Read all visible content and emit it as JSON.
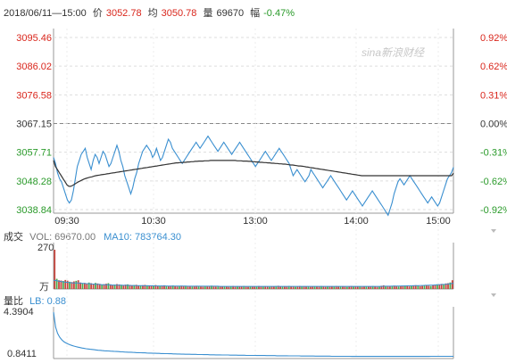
{
  "header": {
    "datetime": "2018/06/11—15:00",
    "price_label": "价",
    "price": "3052.78",
    "avg_label": "均",
    "avg": "3050.78",
    "vol_label": "量",
    "vol": "69670",
    "chg_label": "幅",
    "chg": "-0.47%"
  },
  "watermark": "sina新浪财经",
  "volume_header": {
    "title": "成交",
    "vol_text": "VOL: 69670.00",
    "ma_text": "MA10: 783764.30",
    "y_top": "270",
    "y_bottom": "万"
  },
  "ratio_header": {
    "title": "量比",
    "lb_text": "LB: 0.88",
    "y_top": "4.3904",
    "y_bottom": "0.8411"
  },
  "colors": {
    "price_line": "#3a8fd0",
    "avg_line": "#333333",
    "up": "#d9261c",
    "down": "#2a9a2a",
    "neutral": "#333333",
    "ratio_line": "#3a8fd0",
    "vol_up": "#c7473f",
    "vol_down": "#4caa4c",
    "ma_line": "#3a8fd0"
  },
  "chart_data": {
    "type": "line",
    "title": "",
    "x_ticks": [
      "09:30",
      "10:30",
      "13:00",
      "14:00",
      "15:00"
    ],
    "y_left_ticks": [
      "3095.46",
      "3086.02",
      "3076.58",
      "3067.15",
      "3057.71",
      "3048.28",
      "3038.84"
    ],
    "y_right_ticks": [
      "0.92%",
      "0.62%",
      "0.31%",
      "0.00%",
      "-0.31%",
      "-0.62%",
      "-0.92%"
    ],
    "y_ref": 3067.15,
    "ylim": [
      3038.84,
      3095.46
    ],
    "series": [
      {
        "name": "价",
        "values": [
          3056,
          3054,
          3051,
          3049,
          3048,
          3046,
          3044,
          3042,
          3041,
          3042,
          3045,
          3049,
          3053,
          3055,
          3057,
          3058,
          3059,
          3056,
          3054,
          3052,
          3055,
          3057,
          3056,
          3054,
          3056,
          3058,
          3057,
          3055,
          3053,
          3054,
          3056,
          3058,
          3060,
          3058,
          3055,
          3053,
          3050,
          3048,
          3046,
          3044,
          3046,
          3049,
          3051,
          3054,
          3056,
          3058,
          3059,
          3060,
          3059,
          3058,
          3056,
          3057,
          3059,
          3057,
          3055,
          3056,
          3058,
          3060,
          3062,
          3061,
          3059,
          3058,
          3057,
          3056,
          3055,
          3054,
          3055,
          3056,
          3057,
          3058,
          3059,
          3060,
          3061,
          3060,
          3059,
          3060,
          3061,
          3062,
          3063,
          3062,
          3061,
          3060,
          3059,
          3058,
          3059,
          3060,
          3061,
          3060,
          3059,
          3058,
          3057,
          3058,
          3059,
          3060,
          3061,
          3060,
          3059,
          3058,
          3057,
          3056,
          3055,
          3054,
          3053,
          3054,
          3055,
          3056,
          3057,
          3058,
          3057,
          3056,
          3055,
          3056,
          3057,
          3058,
          3059,
          3058,
          3057,
          3056,
          3055,
          3054,
          3052,
          3050,
          3051,
          3052,
          3051,
          3050,
          3049,
          3048,
          3049,
          3050,
          3052,
          3051,
          3050,
          3049,
          3048,
          3047,
          3046,
          3047,
          3048,
          3049,
          3050,
          3049,
          3048,
          3047,
          3046,
          3045,
          3044,
          3043,
          3042,
          3043,
          3044,
          3045,
          3044,
          3043,
          3042,
          3041,
          3040,
          3041,
          3042,
          3043,
          3044,
          3045,
          3044,
          3043,
          3042,
          3041,
          3040,
          3039,
          3038,
          3037,
          3039,
          3041,
          3044,
          3046,
          3048,
          3049,
          3048,
          3047,
          3048,
          3049,
          3050,
          3049,
          3048,
          3047,
          3046,
          3045,
          3044,
          3043,
          3042,
          3041,
          3042,
          3043,
          3042,
          3041,
          3040,
          3041,
          3043,
          3045,
          3047,
          3049,
          3050,
          3051,
          3052.78
        ],
        "color_key": "price_line"
      },
      {
        "name": "均",
        "values": [
          3055,
          3053,
          3052,
          3051,
          3050,
          3049,
          3048,
          3047,
          3046.5,
          3046.5,
          3046.8,
          3047.2,
          3047.6,
          3048,
          3048.3,
          3048.6,
          3048.9,
          3049.1,
          3049.3,
          3049.5,
          3049.6,
          3049.8,
          3050,
          3050.1,
          3050.2,
          3050.3,
          3050.4,
          3050.5,
          3050.6,
          3050.7,
          3050.8,
          3050.9,
          3051,
          3051.1,
          3051.2,
          3051.3,
          3051.4,
          3051.5,
          3051.6,
          3051.7,
          3051.8,
          3051.9,
          3052,
          3052.1,
          3052.2,
          3052.3,
          3052.4,
          3052.5,
          3052.6,
          3052.7,
          3052.8,
          3052.9,
          3053,
          3053.1,
          3053.2,
          3053.3,
          3053.4,
          3053.5,
          3053.6,
          3053.7,
          3053.8,
          3053.9,
          3054,
          3054.1,
          3054.2,
          3054.2,
          3054.3,
          3054.3,
          3054.4,
          3054.4,
          3054.5,
          3054.5,
          3054.6,
          3054.6,
          3054.7,
          3054.7,
          3054.8,
          3054.8,
          3054.8,
          3054.9,
          3054.9,
          3054.9,
          3055,
          3055,
          3055,
          3055,
          3055,
          3055,
          3055,
          3055,
          3055,
          3055,
          3055,
          3055,
          3055,
          3055,
          3054.9,
          3054.9,
          3054.9,
          3054.8,
          3054.8,
          3054.8,
          3054.7,
          3054.7,
          3054.6,
          3054.6,
          3054.5,
          3054.5,
          3054.4,
          3054.4,
          3054.3,
          3054.3,
          3054.2,
          3054.2,
          3054.1,
          3054.1,
          3054,
          3054,
          3053.9,
          3053.9,
          3053.8,
          3053.8,
          3053.7,
          3053.6,
          3053.5,
          3053.5,
          3053.4,
          3053.3,
          3053.2,
          3053.2,
          3053.1,
          3053,
          3052.9,
          3052.8,
          3052.7,
          3052.6,
          3052.5,
          3052.4,
          3052.3,
          3052.2,
          3052.1,
          3052,
          3051.9,
          3051.8,
          3051.7,
          3051.6,
          3051.5,
          3051.4,
          3051.3,
          3051.2,
          3051.1,
          3051,
          3050.9,
          3050.8,
          3050.7,
          3050.6,
          3050.5,
          3050.4,
          3050.3,
          3050.2,
          3050.1,
          3050,
          3050,
          3050,
          3050,
          3050,
          3050,
          3050,
          3050,
          3050,
          3050,
          3050,
          3050,
          3050,
          3050,
          3050,
          3050,
          3050,
          3050,
          3050,
          3050,
          3050,
          3050,
          3050,
          3050,
          3050,
          3050,
          3050,
          3050,
          3050,
          3050,
          3050,
          3050,
          3050,
          3050,
          3050,
          3050,
          3050,
          3050,
          3050,
          3050,
          3050,
          3050,
          3050,
          3050,
          3050,
          3050,
          3050,
          3050,
          3050.78
        ],
        "color_key": "avg_line"
      }
    ],
    "volume": {
      "ylim": [
        0,
        270
      ],
      "values": [
        270,
        70,
        60,
        58,
        55,
        62,
        57,
        50,
        48,
        52,
        56,
        60,
        45,
        40,
        42,
        38,
        44,
        40,
        36,
        42,
        38,
        35,
        30,
        33,
        36,
        40,
        32,
        28,
        30,
        34,
        31,
        29,
        26,
        30,
        32,
        28,
        25,
        27,
        29,
        24,
        22,
        26,
        28,
        25,
        23,
        21,
        24,
        27,
        22,
        20,
        23,
        25,
        21,
        19,
        22,
        24,
        20,
        18,
        21,
        23,
        19,
        22,
        20,
        18,
        17,
        20,
        22,
        19,
        17,
        16,
        20,
        18,
        21,
        23,
        19,
        17,
        20,
        18,
        16,
        19,
        17,
        15,
        18,
        20,
        17,
        19,
        16,
        18,
        20,
        17,
        15,
        18,
        16,
        19,
        17,
        20,
        18,
        16,
        19,
        17,
        15,
        18,
        16,
        20,
        22,
        18,
        16,
        19,
        17,
        21,
        18,
        16,
        15,
        18,
        20,
        17,
        19,
        16,
        18,
        15,
        17,
        19,
        16,
        18,
        20,
        17,
        15,
        18,
        16,
        19,
        17,
        20,
        18,
        16,
        19,
        17,
        15,
        18,
        20,
        17,
        19,
        16,
        18,
        15,
        17,
        19,
        16,
        18,
        20,
        17,
        15,
        18,
        22,
        25,
        19,
        21,
        18,
        20,
        23,
        19,
        17,
        20,
        22,
        24,
        21,
        18,
        20,
        23,
        26,
        22,
        19,
        21,
        24,
        27,
        23,
        20,
        25,
        28,
        32,
        30,
        35,
        33,
        38,
        40,
        45,
        60
      ],
      "ma": [
        60,
        58,
        55,
        52,
        50,
        48,
        46,
        44,
        43,
        42,
        42,
        41,
        40,
        39,
        38,
        37,
        36,
        35,
        34,
        33,
        32,
        31,
        30,
        29,
        29,
        28,
        28,
        27,
        27,
        26,
        26,
        26,
        25,
        25,
        25,
        24,
        24,
        24,
        23,
        23,
        23,
        23,
        22,
        22,
        22,
        22,
        22,
        21,
        21,
        21,
        21,
        21,
        21,
        20,
        20,
        20,
        20,
        20,
        20,
        20,
        20,
        20,
        19,
        19,
        19,
        19,
        19,
        19,
        19,
        19,
        19,
        19,
        19,
        19,
        19,
        19,
        19,
        18,
        18,
        18,
        18,
        18,
        18,
        18,
        18,
        18,
        18,
        18,
        18,
        18,
        18,
        18,
        18,
        18,
        18,
        18,
        18,
        18,
        18,
        18,
        18,
        18,
        18,
        18,
        18,
        18,
        18,
        18,
        18,
        18,
        18,
        18,
        18,
        18,
        18,
        18,
        18,
        18,
        18,
        18,
        18,
        18,
        18,
        18,
        18,
        18,
        18,
        18,
        18,
        18,
        18,
        18,
        18,
        18,
        18,
        18,
        18,
        18,
        18,
        18,
        18,
        18,
        18,
        18,
        18,
        18,
        18,
        18,
        18,
        18,
        18,
        18,
        18,
        19,
        19,
        19,
        19,
        20,
        20,
        20,
        20,
        21,
        21,
        21,
        22,
        22,
        22,
        23,
        23,
        23,
        24,
        24,
        25,
        25,
        26,
        26,
        27,
        28,
        29,
        30,
        31,
        32,
        33,
        35,
        37,
        40
      ]
    },
    "ratio": {
      "ylim": [
        0.8411,
        4.3904
      ],
      "values": [
        4.3904,
        3.2,
        2.7,
        2.4,
        2.2,
        2.05,
        1.95,
        1.87,
        1.8,
        1.74,
        1.69,
        1.65,
        1.61,
        1.57,
        1.54,
        1.51,
        1.48,
        1.46,
        1.44,
        1.42,
        1.4,
        1.38,
        1.36,
        1.35,
        1.33,
        1.32,
        1.31,
        1.3,
        1.29,
        1.28,
        1.27,
        1.26,
        1.25,
        1.24,
        1.23,
        1.22,
        1.21,
        1.2,
        1.2,
        1.19,
        1.18,
        1.17,
        1.17,
        1.16,
        1.15,
        1.15,
        1.14,
        1.13,
        1.13,
        1.12,
        1.12,
        1.11,
        1.11,
        1.1,
        1.1,
        1.09,
        1.09,
        1.08,
        1.08,
        1.07,
        1.07,
        1.06,
        1.06,
        1.05,
        1.05,
        1.04,
        1.04,
        1.04,
        1.03,
        1.03,
        1.03,
        1.02,
        1.02,
        1.02,
        1.01,
        1.01,
        1.01,
        1.0,
        1.0,
        1.0,
        0.99,
        0.99,
        0.99,
        0.98,
        0.98,
        0.98,
        0.98,
        0.97,
        0.97,
        0.97,
        0.97,
        0.96,
        0.96,
        0.96,
        0.96,
        0.95,
        0.95,
        0.95,
        0.95,
        0.95,
        0.94,
        0.94,
        0.94,
        0.94,
        0.94,
        0.93,
        0.93,
        0.93,
        0.93,
        0.93,
        0.92,
        0.92,
        0.92,
        0.92,
        0.92,
        0.92,
        0.91,
        0.91,
        0.91,
        0.91,
        0.91,
        0.91,
        0.9,
        0.9,
        0.9,
        0.9,
        0.9,
        0.9,
        0.9,
        0.89,
        0.89,
        0.89,
        0.89,
        0.89,
        0.89,
        0.89,
        0.89,
        0.88,
        0.88,
        0.88,
        0.88,
        0.88,
        0.88,
        0.88,
        0.88,
        0.88,
        0.88,
        0.87,
        0.87,
        0.87,
        0.87,
        0.87,
        0.87,
        0.87,
        0.87,
        0.87,
        0.87,
        0.87,
        0.87,
        0.87,
        0.87,
        0.87,
        0.87,
        0.87,
        0.87,
        0.87,
        0.87,
        0.87,
        0.87,
        0.87,
        0.87,
        0.87,
        0.87,
        0.87,
        0.87,
        0.87,
        0.87,
        0.87,
        0.87,
        0.87,
        0.87,
        0.87,
        0.87,
        0.87,
        0.87,
        0.87,
        0.88,
        0.88,
        0.88,
        0.88,
        0.88,
        0.88,
        0.88,
        0.88,
        0.88,
        0.88,
        0.88,
        0.88
      ]
    }
  }
}
